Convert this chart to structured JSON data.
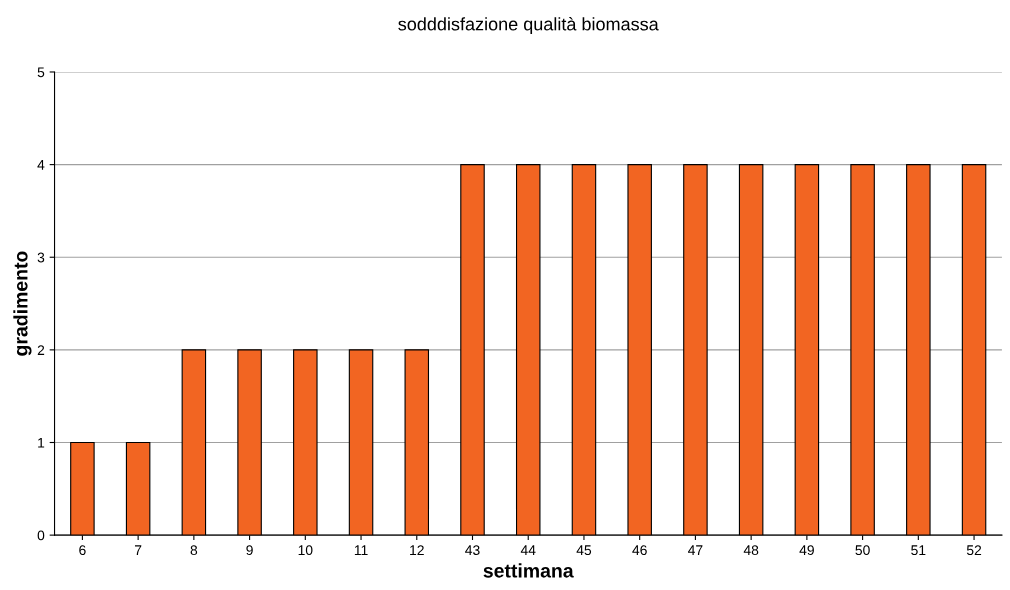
{
  "chart_data": {
    "type": "bar",
    "title": "sodddisfazione qualità biomassa",
    "xlabel": "settimana",
    "ylabel": "gradimento",
    "categories": [
      "6",
      "7",
      "8",
      "9",
      "10",
      "11",
      "12",
      "43",
      "44",
      "45",
      "46",
      "47",
      "48",
      "49",
      "50",
      "51",
      "52"
    ],
    "values": [
      1,
      1,
      2,
      2,
      2,
      2,
      2,
      4,
      4,
      4,
      4,
      4,
      4,
      4,
      4,
      4,
      4
    ],
    "color": "#f26522",
    "ylim": [
      0,
      5
    ],
    "yticks": [
      0,
      1,
      2,
      3,
      4,
      5
    ],
    "grid": "y"
  }
}
